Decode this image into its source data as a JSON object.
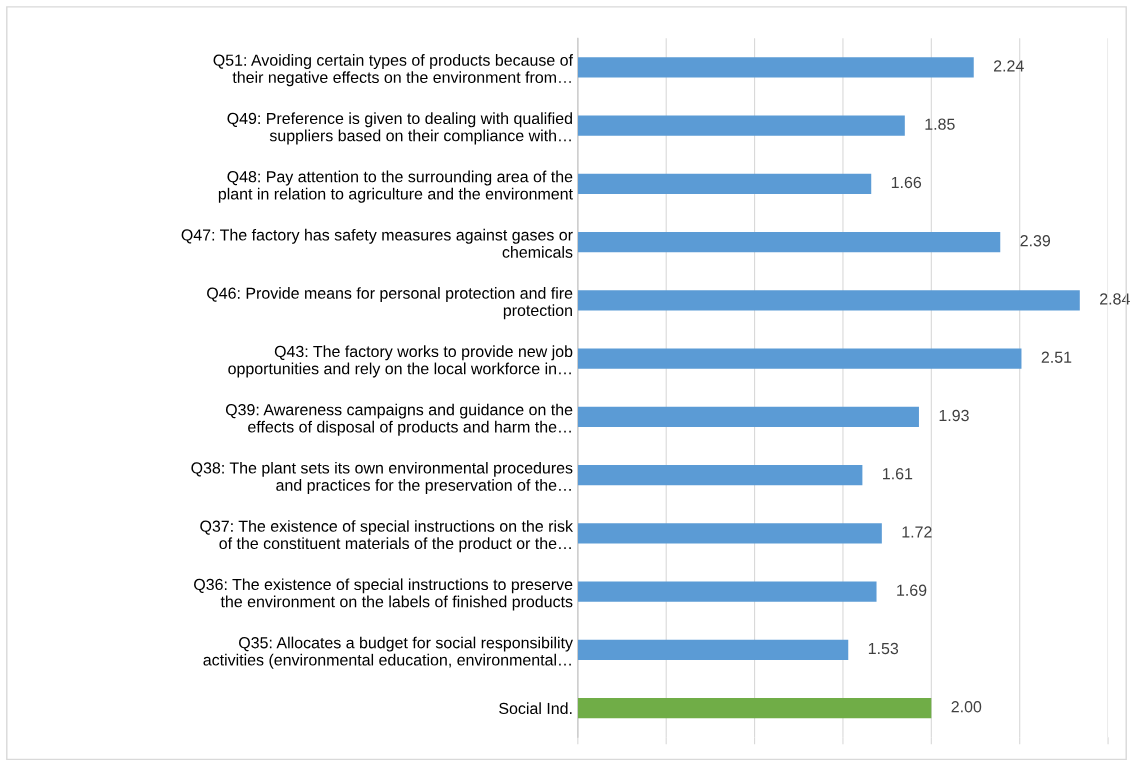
{
  "chart_data": {
    "type": "bar",
    "orientation": "horizontal",
    "categories": [
      "Q51: Avoiding certain types of products because of\ntheir negative effects on the environment from…",
      "Q49: Preference is given to dealing with qualified\nsuppliers based on their compliance with…",
      "Q48: Pay attention to the surrounding area of the\nplant in relation to agriculture and the environment",
      "Q47: The factory has safety measures against gases or\nchemicals",
      "Q46: Provide means for personal protection and fire\nprotection",
      "Q43: The factory works to provide new job\nopportunities and rely on the local workforce in…",
      "Q39: Awareness campaigns and guidance on the\neffects of disposal of products and harm the…",
      "Q38: The plant sets its own environmental procedures\nand practices for the preservation of the…",
      "Q37: The existence of special instructions on the risk\nof the constituent materials of the product or the…",
      "Q36: The existence of special instructions to preserve\nthe environment on the labels of finished products",
      "Q35: Allocates a budget for social responsibility\nactivities (environmental education, environmental…",
      "Social Ind."
    ],
    "values": [
      2.24,
      1.85,
      1.66,
      2.39,
      2.84,
      2.51,
      1.93,
      1.61,
      1.72,
      1.69,
      1.53,
      2.0
    ],
    "value_labels": [
      "2.24",
      "1.85",
      "1.66",
      "2.39",
      "2.84",
      "2.51",
      "1.93",
      "1.61",
      "1.72",
      "1.69",
      "1.53",
      "2.00"
    ],
    "colors": [
      "#5b9bd5",
      "#5b9bd5",
      "#5b9bd5",
      "#5b9bd5",
      "#5b9bd5",
      "#5b9bd5",
      "#5b9bd5",
      "#5b9bd5",
      "#5b9bd5",
      "#5b9bd5",
      "#5b9bd5",
      "#70ad47"
    ],
    "xlim": [
      0,
      3
    ],
    "xticks": [
      {
        "value": 0,
        "label": null
      },
      {
        "value": 0.5,
        "label": null
      },
      {
        "value": 1,
        "label": null
      },
      {
        "value": 1.5,
        "label": null
      },
      {
        "value": 2,
        "label": null
      },
      {
        "value": 2.5,
        "label": null
      },
      {
        "value": 3,
        "label": null
      }
    ],
    "grid": "x",
    "tick_labels": "y",
    "legend": false
  }
}
